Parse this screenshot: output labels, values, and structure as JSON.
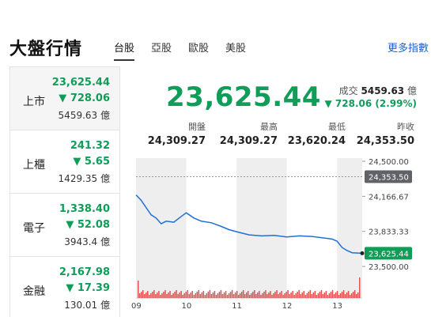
{
  "header": {
    "title": "大盤行情",
    "tabs": [
      {
        "label": "台股",
        "active": true
      },
      {
        "label": "亞股",
        "active": false
      },
      {
        "label": "歐股",
        "active": false
      },
      {
        "label": "美股",
        "active": false
      }
    ],
    "more_label": "更多指數"
  },
  "markets": [
    {
      "name": "上市",
      "price": "23,625.44",
      "change": "▼ 728.06",
      "volume": "5459.63 億"
    },
    {
      "name": "上櫃",
      "price": "241.32",
      "change": "▼ 5.65",
      "volume": "1429.35 億"
    },
    {
      "name": "電子",
      "price": "1,338.40",
      "change": "▼ 52.08",
      "volume": "3943.4 億"
    },
    {
      "name": "金融",
      "price": "2,167.98",
      "change": "▼ 17.39",
      "volume": "130.01 億"
    }
  ],
  "quote": {
    "price": "23,625.44",
    "volume_label": "成交",
    "volume_value": "5459.63",
    "volume_unit": "億",
    "change": "▼ 728.06 (2.99%)"
  },
  "stats": [
    {
      "label": "開盤",
      "value": "24,309.27"
    },
    {
      "label": "最高",
      "value": "24,309.27"
    },
    {
      "label": "最低",
      "value": "23,620.24"
    },
    {
      "label": "昨收",
      "value": "24,353.50"
    }
  ],
  "colors": {
    "down": "#0f9d58",
    "line": "#1f6fd6",
    "volume": "#e05050",
    "band": "#eeeeee",
    "prev_close": "#5f6368"
  },
  "chart_data": {
    "type": "line",
    "x_ticks": [
      "09",
      "10",
      "11",
      "12",
      "13"
    ],
    "y_ticks": [
      "24,500.00",
      "24,166.67",
      "23,833.33",
      "23,500.00"
    ],
    "ylim": [
      23500,
      24500
    ],
    "prev_close": 24353.5,
    "prev_close_label": "24,353.50",
    "last_label": "23,625.44",
    "series": [
      {
        "x": [
          9.0,
          9.1,
          9.2,
          9.3,
          9.4,
          9.5,
          9.6,
          9.75,
          9.9,
          10.0,
          10.15,
          10.3,
          10.5,
          10.7,
          10.85,
          11.0,
          11.25,
          11.5,
          11.75,
          12.0,
          12.25,
          12.5,
          12.75,
          12.9,
          13.0,
          13.1,
          13.2,
          13.3,
          13.5
        ],
        "values": [
          24180,
          24130,
          24060,
          23990,
          23960,
          23905,
          23930,
          23920,
          23975,
          24010,
          23960,
          23930,
          23915,
          23880,
          23850,
          23830,
          23800,
          23790,
          23795,
          23780,
          23790,
          23785,
          23770,
          23760,
          23740,
          23680,
          23650,
          23630,
          23625
        ]
      }
    ]
  }
}
